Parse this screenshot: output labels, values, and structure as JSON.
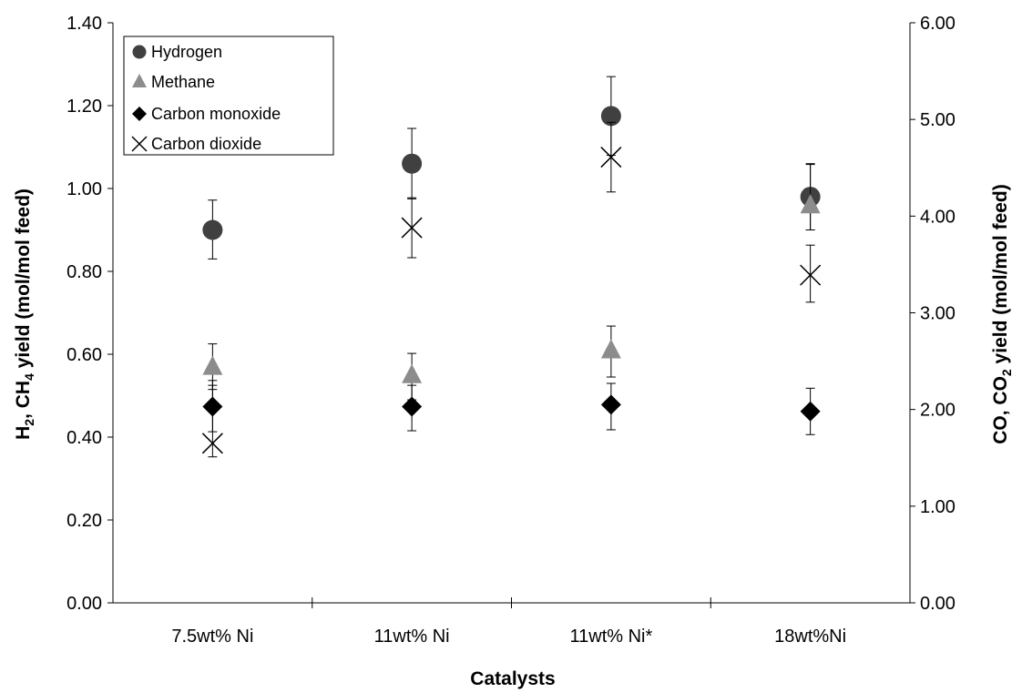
{
  "chart_data": {
    "type": "scatter",
    "categories": [
      "7.5wt% Ni",
      "11wt% Ni",
      "11wt% Ni*",
      "18wt%Ni"
    ],
    "xlabel": "Catalysts",
    "ylabel_left": {
      "main": "H",
      "sub1": "2",
      "mid": ", CH",
      "sub2": "4",
      "end": " yield (mol/mol feed)"
    },
    "ylabel_right": {
      "main": "CO, CO",
      "sub1": "2",
      "end": " yield (mol/mol feed)"
    },
    "ylim_left": [
      0,
      1.4
    ],
    "ylim_right": [
      0,
      6
    ],
    "yticks_left": [
      "0.00",
      "0.20",
      "0.40",
      "0.60",
      "0.80",
      "1.00",
      "1.20",
      "1.40"
    ],
    "yticks_right": [
      "0.00",
      "1.00",
      "2.00",
      "3.00",
      "4.00",
      "5.00",
      "6.00"
    ],
    "grid": false,
    "legend_position": "top-left",
    "series": [
      {
        "name": "Hydrogen",
        "axis": "left",
        "marker": "circle",
        "color": "#404040",
        "values": [
          0.9,
          1.06,
          1.175,
          0.98
        ],
        "err_low": [
          0.83,
          0.975,
          1.08,
          0.9
        ],
        "err_high": [
          0.972,
          1.145,
          1.27,
          1.06
        ]
      },
      {
        "name": "Methane",
        "axis": "left",
        "marker": "triangle",
        "color": "#8c8c8c",
        "values": [
          0.57,
          0.55,
          0.61,
          0.96
        ],
        "err_low": [
          0.515,
          0.49,
          0.545,
          0.9
        ],
        "err_high": [
          0.625,
          0.602,
          0.668,
          1.058
        ]
      },
      {
        "name": "Carbon monoxide",
        "axis": "right",
        "marker": "diamond",
        "color": "#000000",
        "values": [
          2.03,
          2.03,
          2.05,
          1.98
        ],
        "err_low": [
          1.77,
          1.78,
          1.79,
          1.74
        ],
        "err_high": [
          2.25,
          2.25,
          2.27,
          2.22
        ]
      },
      {
        "name": "Carbon dioxide",
        "axis": "right",
        "marker": "x",
        "color": "#000000",
        "values": [
          1.65,
          3.88,
          4.61,
          3.39
        ],
        "err_low": [
          1.51,
          3.57,
          4.25,
          3.11
        ],
        "err_high": [
          2.3,
          4.19,
          4.97,
          3.7
        ]
      }
    ]
  }
}
